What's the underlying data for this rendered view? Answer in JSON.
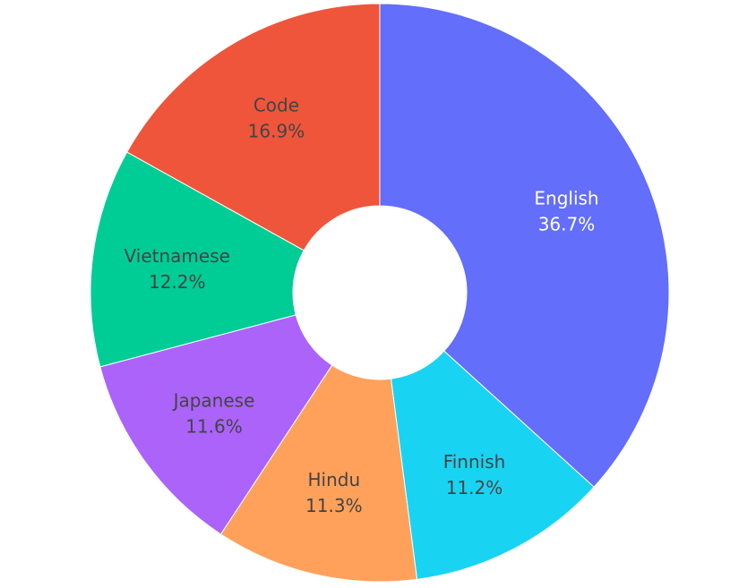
{
  "chart_data": {
    "type": "pie",
    "hole": true,
    "sort": "clockwise-from-top",
    "slices": [
      {
        "label": "English",
        "percent": 36.7,
        "percent_text": "36.7%",
        "color": "#636efa",
        "text_color": "#ffffff"
      },
      {
        "label": "Finnish",
        "percent": 11.2,
        "percent_text": "11.2%",
        "color": "#19d3f3",
        "text_color": "#444444"
      },
      {
        "label": "Hindu",
        "percent": 11.3,
        "percent_text": "11.3%",
        "color": "#ffa15a",
        "text_color": "#444444"
      },
      {
        "label": "Japanese",
        "percent": 11.6,
        "percent_text": "11.6%",
        "color": "#ab63fa",
        "text_color": "#444444"
      },
      {
        "label": "Vietnamese",
        "percent": 12.2,
        "percent_text": "12.2%",
        "color": "#00cc96",
        "text_color": "#444444"
      },
      {
        "label": "Code",
        "percent": 16.9,
        "percent_text": "16.9%",
        "color": "#ef553b",
        "text_color": "#444444"
      }
    ]
  }
}
